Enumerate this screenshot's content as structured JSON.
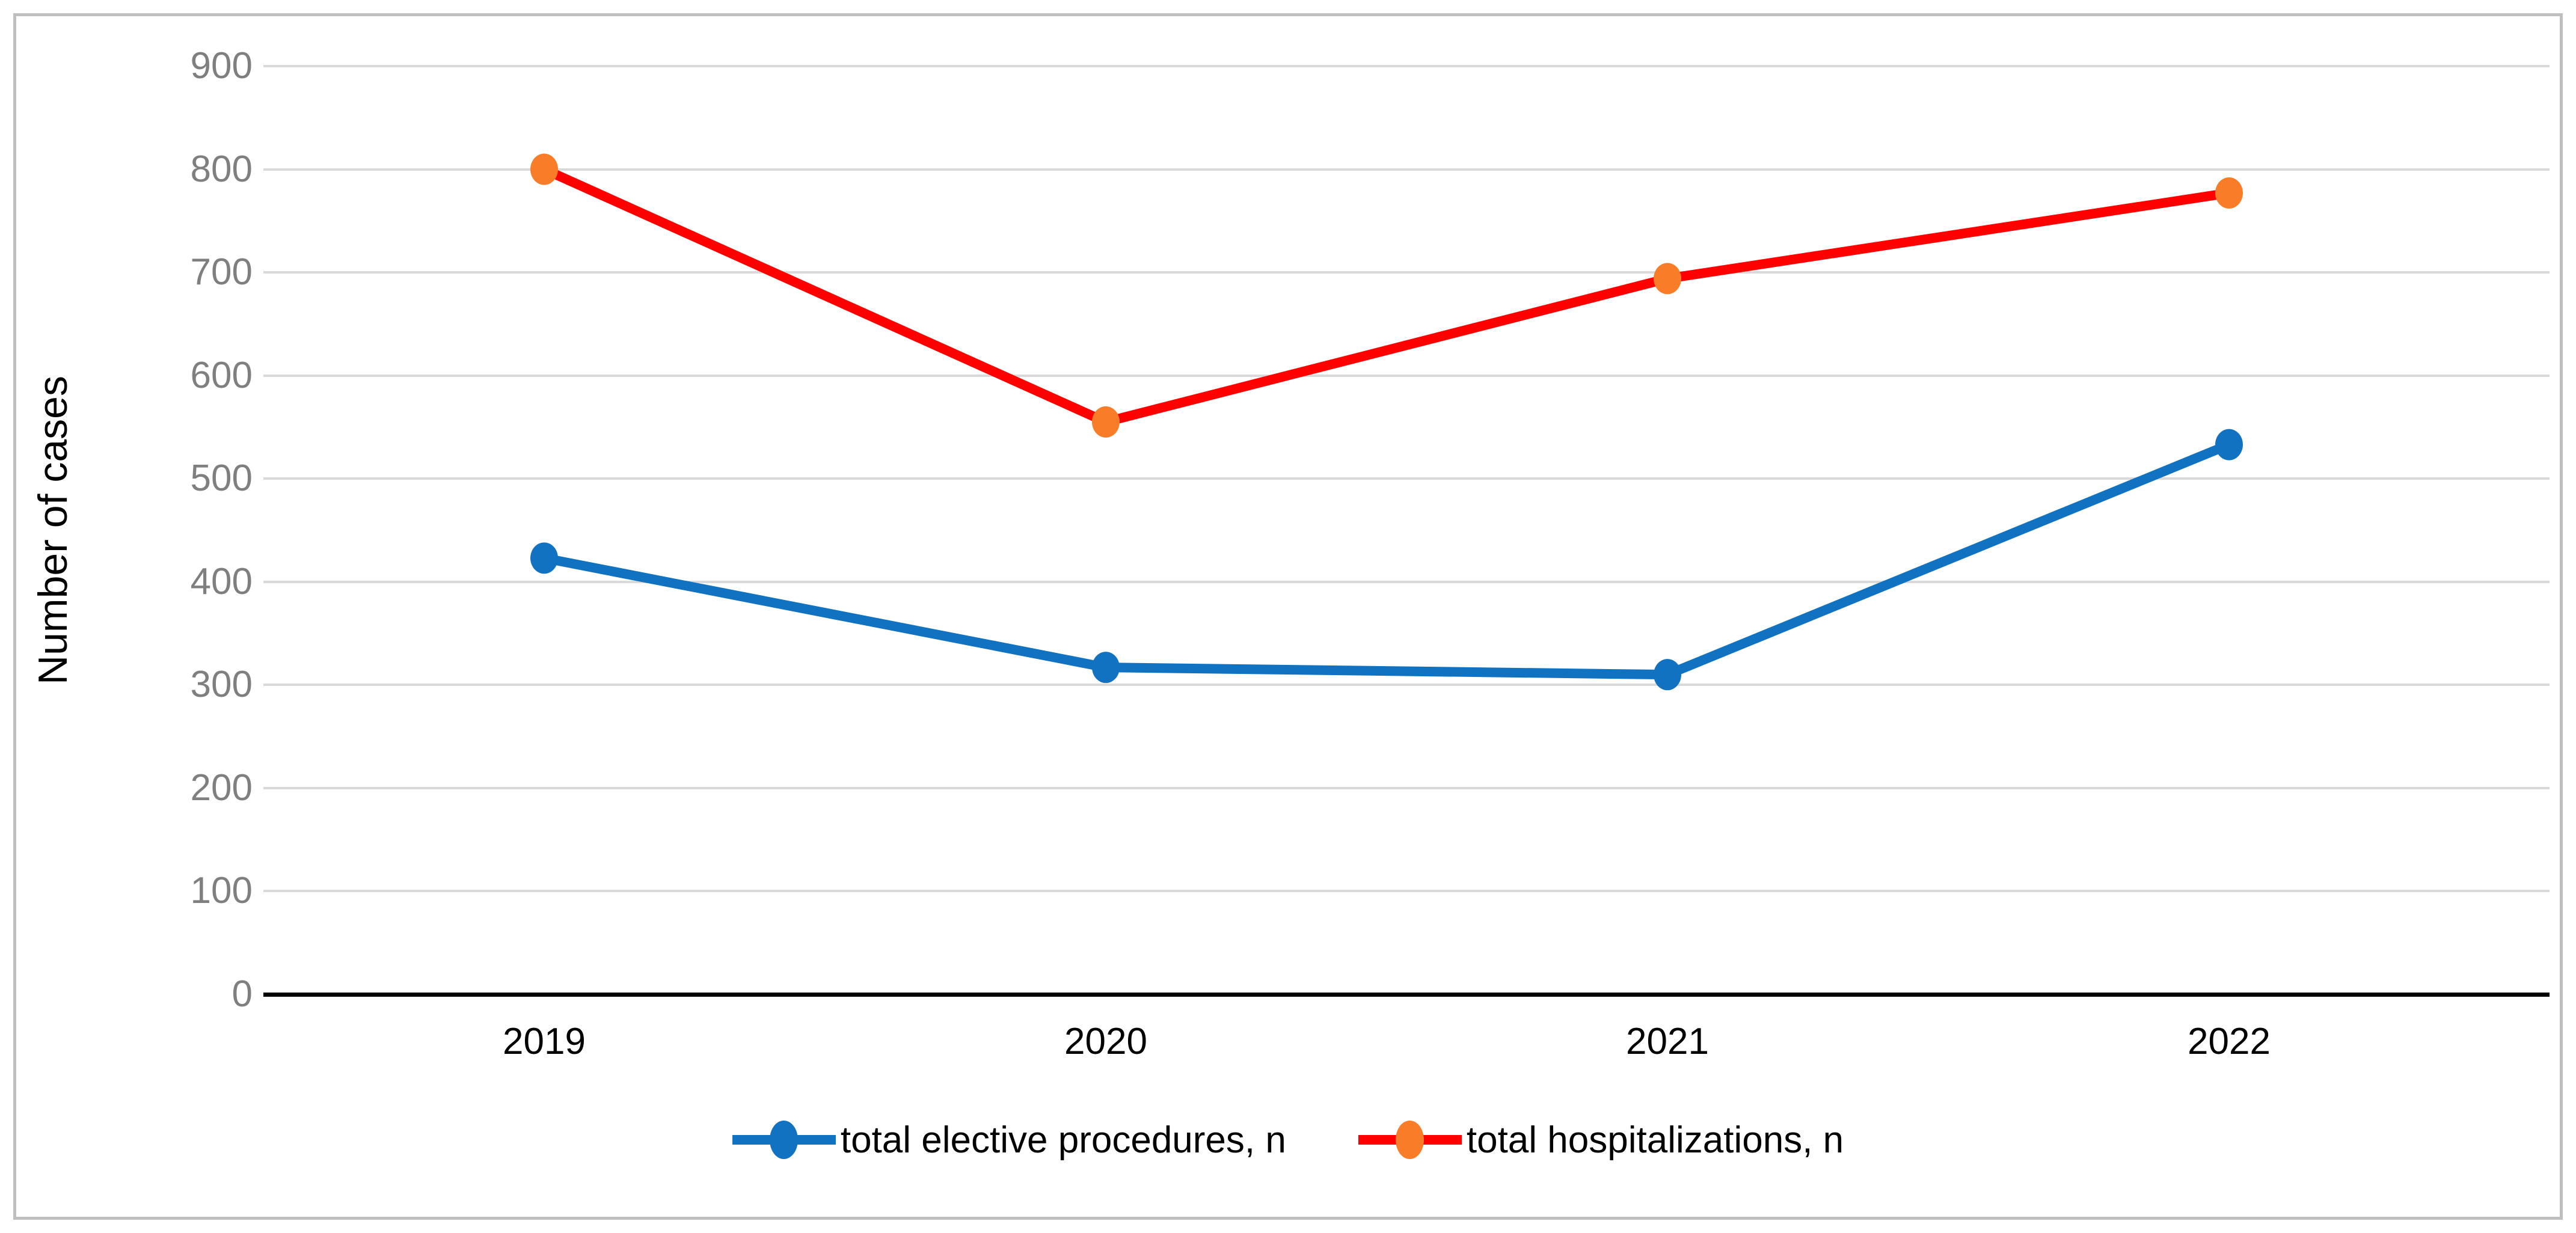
{
  "figure": {
    "background": "#ffffff",
    "border_color": "#bfbfbf"
  },
  "chart_data": {
    "type": "line",
    "title": "",
    "xlabel": "",
    "ylabel": "Number of cases",
    "categories": [
      "2019",
      "2020",
      "2021",
      "2022"
    ],
    "series": [
      {
        "name": "total elective procedures, n",
        "line_color": "#1272c2",
        "marker_color": "#1272c2",
        "values": [
          423,
          317,
          310,
          533
        ]
      },
      {
        "name": "total hospitalizations, n",
        "line_color": "#ff0000",
        "marker_color": "#f97d28",
        "values": [
          800,
          555,
          694,
          777
        ]
      }
    ],
    "ylim": [
      0,
      900
    ],
    "ytick_step": 100,
    "ytick_labels": [
      "0",
      "100",
      "200",
      "300",
      "400",
      "500",
      "600",
      "700",
      "800",
      "900"
    ],
    "grid": "horizontal",
    "gridline_color": "#d9d9d9",
    "tick_label_color": "#7f7f7f",
    "axis_line_color": "#000000",
    "legend_position": "bottom"
  }
}
